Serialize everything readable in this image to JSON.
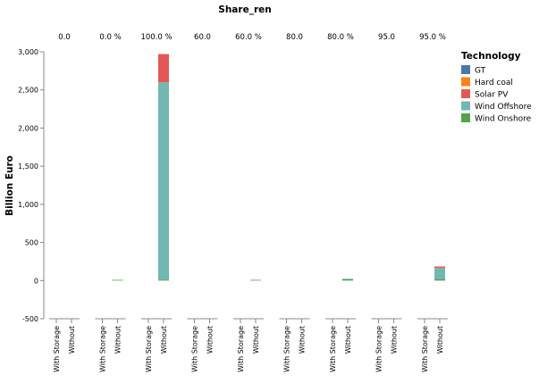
{
  "chart_data": {
    "type": "bar",
    "stacked": true,
    "facet_title": "Share_ren",
    "facets": [
      "0.0",
      "0.0 %",
      "100.0 %",
      "60.0",
      "60.0 %",
      "80.0",
      "80.0 %",
      "95.0",
      "95.0 %"
    ],
    "categories": [
      "With Storage",
      "Without"
    ],
    "ylabel": "Billion Euro",
    "ylim": [
      -500,
      3000
    ],
    "yticks": [
      -500,
      0,
      500,
      1000,
      1500,
      2000,
      2500,
      3000
    ],
    "ytick_labels": [
      "-500",
      "0",
      "500",
      "1,000",
      "1,500",
      "2,000",
      "2,500",
      "3,000"
    ],
    "legend_title": "Technology",
    "legend_position": "top-right",
    "grid": false,
    "series": [
      {
        "name": "GT",
        "color": "#4c78a8",
        "values": [
          [
            0,
            0
          ],
          [
            0,
            0
          ],
          [
            0,
            0
          ],
          [
            0,
            0
          ],
          [
            0,
            0
          ],
          [
            0,
            0
          ],
          [
            0,
            0
          ],
          [
            0,
            0
          ],
          [
            0,
            0
          ]
        ]
      },
      {
        "name": "Hard coal",
        "color": "#f58518",
        "values": [
          [
            0,
            0
          ],
          [
            0,
            0
          ],
          [
            0,
            0
          ],
          [
            0,
            0
          ],
          [
            0,
            0
          ],
          [
            0,
            0
          ],
          [
            0,
            0
          ],
          [
            0,
            0
          ],
          [
            0,
            0
          ]
        ]
      },
      {
        "name": "Wind Onshore",
        "color": "#54a24b",
        "values": [
          [
            0,
            0
          ],
          [
            0,
            3
          ],
          [
            0,
            10
          ],
          [
            0,
            0
          ],
          [
            0,
            8
          ],
          [
            0,
            0
          ],
          [
            0,
            15
          ],
          [
            0,
            0
          ],
          [
            0,
            15
          ]
        ]
      },
      {
        "name": "Wind Offshore",
        "color": "#72b7b2",
        "values": [
          [
            0,
            0
          ],
          [
            0,
            0
          ],
          [
            0,
            2590
          ],
          [
            0,
            0
          ],
          [
            0,
            0
          ],
          [
            0,
            0
          ],
          [
            0,
            5
          ],
          [
            0,
            0
          ],
          [
            0,
            150
          ]
        ]
      },
      {
        "name": "Solar PV",
        "color": "#e45756",
        "values": [
          [
            0,
            0
          ],
          [
            0,
            0
          ],
          [
            0,
            370
          ],
          [
            0,
            0
          ],
          [
            0,
            0
          ],
          [
            0,
            0
          ],
          [
            0,
            0
          ],
          [
            0,
            0
          ],
          [
            0,
            20
          ]
        ]
      }
    ],
    "legend_order": [
      "GT",
      "Hard coal",
      "Solar PV",
      "Wind Offshore",
      "Wind Onshore"
    ]
  }
}
